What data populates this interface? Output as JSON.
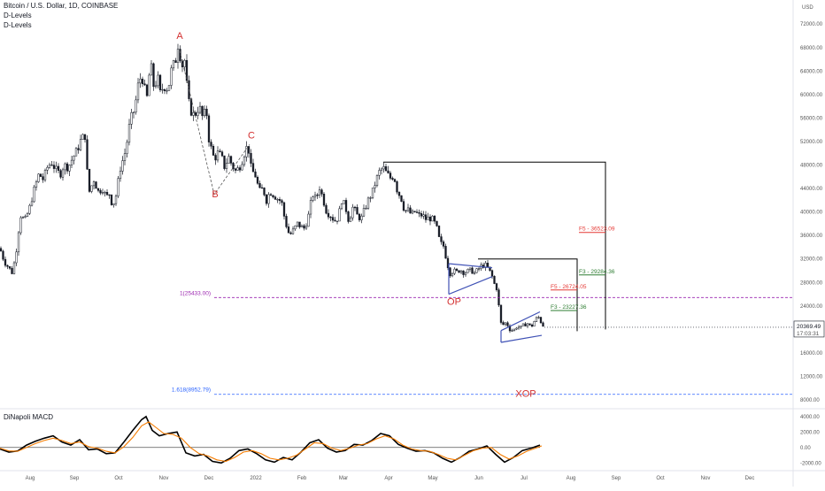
{
  "header": {
    "symbol_line": "Bitcoin / U.S. Dollar, 1D, COINBASE",
    "indicator_1": "D-Levels",
    "indicator_2": "D-Levels",
    "macd_label": "DiNapoli MACD"
  },
  "chart_data": [
    {
      "type": "candlestick",
      "currency_label": "USD",
      "y_ticks": [
        "72000.00",
        "68000.00",
        "64000.00",
        "60000.00",
        "56000.00",
        "52000.00",
        "48000.00",
        "44000.00",
        "40000.00",
        "36000.00",
        "32000.00",
        "28000.00",
        "24000.00",
        "20000.00",
        "16000.00",
        "12000.00",
        "8000.00"
      ],
      "ylim": [
        6500,
        75500
      ],
      "x_ticks": [
        "Aug",
        "Sep",
        "Oct",
        "Nov",
        "Dec",
        "2022",
        "Feb",
        "Mar",
        "Apr",
        "May",
        "Jun",
        "Jul",
        "Aug",
        "Sep",
        "Oct",
        "Nov",
        "Dec"
      ],
      "last_price": {
        "value": 20369.49,
        "label": "20369.49",
        "countdown": "17:03:31"
      },
      "price_path": [
        [
          0,
          33800
        ],
        [
          5,
          31500
        ],
        [
          10,
          30500
        ],
        [
          14,
          29600
        ],
        [
          18,
          33000
        ],
        [
          23,
          39500
        ],
        [
          28,
          38500
        ],
        [
          33,
          40500
        ],
        [
          38,
          43500
        ],
        [
          44,
          46500
        ],
        [
          49,
          45500
        ],
        [
          53,
          47500
        ],
        [
          58,
          48500
        ],
        [
          63,
          47200
        ],
        [
          68,
          46400
        ],
        [
          72,
          48000
        ],
        [
          77,
          47600
        ],
        [
          82,
          49200
        ],
        [
          87,
          50500
        ],
        [
          92,
          52500
        ],
        [
          96,
          53000
        ],
        [
          98,
          47500
        ],
        [
          101,
          43500
        ],
        [
          106,
          45500
        ],
        [
          111,
          43500
        ],
        [
          116,
          44000
        ],
        [
          120,
          42500
        ],
        [
          124,
          43200
        ],
        [
          127,
          41000
        ],
        [
          131,
          42800
        ],
        [
          136,
          47500
        ],
        [
          142,
          50500
        ],
        [
          147,
          55500
        ],
        [
          152,
          57500
        ],
        [
          156,
          61500
        ],
        [
          160,
          63500
        ],
        [
          163,
          61000
        ],
        [
          166,
          59500
        ],
        [
          170,
          65500
        ],
        [
          174,
          61000
        ],
        [
          178,
          63000
        ],
        [
          181,
          60200
        ],
        [
          185,
          61500
        ],
        [
          190,
          61000
        ],
        [
          194,
          64500
        ],
        [
          198,
          65500
        ],
        [
          201,
          68500
        ],
        [
          203,
          67000
        ],
        [
          206,
          65000
        ],
        [
          209,
          66000
        ],
        [
          212,
          59500
        ],
        [
          215,
          57500
        ],
        [
          218,
          56500
        ],
        [
          221,
          56800
        ],
        [
          225,
          58000
        ],
        [
          229,
          56000
        ],
        [
          233,
          57500
        ],
        [
          236,
          52500
        ],
        [
          239,
          50500
        ],
        [
          242,
          49000
        ],
        [
          246,
          50000
        ],
        [
          250,
          49500
        ],
        [
          254,
          47500
        ],
        [
          258,
          49500
        ],
        [
          262,
          48000
        ],
        [
          266,
          47000
        ],
        [
          270,
          47500
        ],
        [
          274,
          49000
        ],
        [
          278,
          51000
        ],
        [
          281,
          50500
        ],
        [
          284,
          47000
        ],
        [
          288,
          46500
        ],
        [
          293,
          43500
        ],
        [
          297,
          44000
        ],
        [
          301,
          42000
        ],
        [
          305,
          43500
        ],
        [
          310,
          42800
        ],
        [
          314,
          42200
        ],
        [
          318,
          41800
        ],
        [
          322,
          38500
        ],
        [
          327,
          36000
        ],
        [
          331,
          36800
        ],
        [
          336,
          38000
        ],
        [
          340,
          37500
        ],
        [
          344,
          37200
        ],
        [
          348,
          39000
        ],
        [
          353,
          43000
        ],
        [
          357,
          42200
        ],
        [
          361,
          44200
        ],
        [
          365,
          42200
        ],
        [
          369,
          40000
        ],
        [
          373,
          39500
        ],
        [
          378,
          38500
        ],
        [
          382,
          39000
        ],
        [
          386,
          42000
        ],
        [
          390,
          41000
        ],
        [
          394,
          38500
        ],
        [
          399,
          41000
        ],
        [
          403,
          39500
        ],
        [
          408,
          38800
        ],
        [
          412,
          40500
        ],
        [
          416,
          42000
        ],
        [
          421,
          43500
        ],
        [
          425,
          45500
        ],
        [
          429,
          47000
        ],
        [
          433,
          47500
        ],
        [
          437,
          46500
        ],
        [
          441,
          45800
        ],
        [
          445,
          46200
        ],
        [
          449,
          43500
        ],
        [
          453,
          42500
        ],
        [
          457,
          40200
        ],
        [
          461,
          40300
        ],
        [
          465,
          39500
        ],
        [
          469,
          40100
        ],
        [
          473,
          39400
        ],
        [
          477,
          39500
        ],
        [
          481,
          38800
        ],
        [
          485,
          39000
        ],
        [
          489,
          38700
        ],
        [
          493,
          37500
        ],
        [
          497,
          34800
        ],
        [
          501,
          34200
        ],
        [
          505,
          31500
        ],
        [
          508,
          29500
        ],
        [
          512,
          30000
        ],
        [
          516,
          29800
        ],
        [
          520,
          30200
        ],
        [
          524,
          29700
        ],
        [
          528,
          29900
        ],
        [
          532,
          30100
        ],
        [
          536,
          29600
        ],
        [
          540,
          30200
        ],
        [
          544,
          30800
        ],
        [
          548,
          31000
        ],
        [
          552,
          30300
        ],
        [
          556,
          29000
        ],
        [
          559,
          27500
        ],
        [
          562,
          26800
        ],
        [
          565,
          21200
        ],
        [
          568,
          20800
        ],
        [
          572,
          21200
        ],
        [
          576,
          20000
        ],
        [
          580,
          19800
        ],
        [
          584,
          20500
        ],
        [
          588,
          20300
        ],
        [
          592,
          20800
        ],
        [
          596,
          21000
        ],
        [
          600,
          20400
        ],
        [
          604,
          21500
        ],
        [
          608,
          22200
        ],
        [
          612,
          21000
        ],
        [
          615,
          20369
        ]
      ],
      "fib_levels": [
        {
          "label": "1(25433.00)",
          "value": 25433,
          "color": "#9c27b0"
        },
        {
          "label": "1.618(8952.79)",
          "value": 8952.79,
          "color": "#2962ff"
        }
      ],
      "projection_boxes": [
        {
          "top": 48500,
          "bottom": 20000,
          "f5": "F5 - 36523.09",
          "f5_value": 36523.09,
          "f3": "F3 - 29284.36",
          "f3_value": 29284.36
        },
        {
          "top": 32000,
          "bottom": 19700,
          "f5": "F5 - 26724.05",
          "f5_value": 26724.05,
          "f3": "F3 - 23227.36",
          "f3_value": 23227.36
        }
      ],
      "wave_labels": [
        {
          "text": "A",
          "price": 69500
        },
        {
          "text": "B",
          "price": 42500
        },
        {
          "text": "C",
          "price": 52500
        },
        {
          "text": "OP",
          "price": 24200
        },
        {
          "text": "XOP",
          "price": 8500
        }
      ],
      "trend_channels": [
        {
          "upper": [
            [
              507,
              31200
            ],
            [
              556,
              30500
            ]
          ],
          "lower": [
            [
              507,
              26000
            ],
            [
              556,
              29000
            ]
          ]
        },
        {
          "upper": [
            [
              566,
              19800
            ],
            [
              610,
              23000
            ]
          ],
          "lower": [
            [
              566,
              17800
            ],
            [
              612,
              19000
            ]
          ]
        }
      ],
      "colors": {
        "candle": "#131722",
        "box": "#000000",
        "channel": "#3f51b5",
        "f5": "#e53935",
        "f3": "#2e7d32",
        "wave": "#d32f2f"
      }
    },
    {
      "type": "line",
      "title": "DiNapoli MACD",
      "y_ticks": [
        "4000.00",
        "2000.00",
        "0.00",
        "-2000.00"
      ],
      "ylim": [
        -3000,
        5000
      ],
      "series": [
        {
          "color": "#000000",
          "path": [
            [
              0,
              -200
            ],
            [
              10,
              -600
            ],
            [
              20,
              -450
            ],
            [
              30,
              300
            ],
            [
              40,
              800
            ],
            [
              50,
              1200
            ],
            [
              60,
              1500
            ],
            [
              70,
              700
            ],
            [
              80,
              300
            ],
            [
              90,
              1000
            ],
            [
              100,
              -300
            ],
            [
              110,
              -200
            ],
            [
              120,
              -800
            ],
            [
              130,
              -700
            ],
            [
              140,
              700
            ],
            [
              150,
              2200
            ],
            [
              160,
              3600
            ],
            [
              165,
              4000
            ],
            [
              172,
              2200
            ],
            [
              180,
              1500
            ],
            [
              190,
              1800
            ],
            [
              200,
              2000
            ],
            [
              210,
              -700
            ],
            [
              220,
              -1100
            ],
            [
              230,
              -900
            ],
            [
              240,
              -1800
            ],
            [
              250,
              -2000
            ],
            [
              260,
              -1400
            ],
            [
              270,
              -400
            ],
            [
              280,
              -200
            ],
            [
              290,
              -800
            ],
            [
              300,
              -1600
            ],
            [
              310,
              -1900
            ],
            [
              320,
              -1300
            ],
            [
              330,
              -1600
            ],
            [
              340,
              -600
            ],
            [
              350,
              600
            ],
            [
              360,
              1000
            ],
            [
              370,
              -100
            ],
            [
              380,
              -600
            ],
            [
              390,
              -400
            ],
            [
              400,
              400
            ],
            [
              410,
              300
            ],
            [
              420,
              900
            ],
            [
              430,
              1800
            ],
            [
              440,
              1500
            ],
            [
              450,
              400
            ],
            [
              460,
              -100
            ],
            [
              470,
              -500
            ],
            [
              480,
              -400
            ],
            [
              490,
              -700
            ],
            [
              500,
              -1400
            ],
            [
              510,
              -1900
            ],
            [
              520,
              -1300
            ],
            [
              530,
              -500
            ],
            [
              540,
              -200
            ],
            [
              550,
              200
            ],
            [
              560,
              -900
            ],
            [
              570,
              -1900
            ],
            [
              580,
              -1300
            ],
            [
              590,
              -400
            ],
            [
              600,
              -100
            ],
            [
              610,
              300
            ]
          ]
        },
        {
          "color": "#f57c00",
          "path": [
            [
              0,
              -100
            ],
            [
              10,
              -450
            ],
            [
              20,
              -500
            ],
            [
              30,
              0
            ],
            [
              40,
              500
            ],
            [
              50,
              900
            ],
            [
              60,
              1200
            ],
            [
              70,
              900
            ],
            [
              80,
              500
            ],
            [
              90,
              700
            ],
            [
              100,
              100
            ],
            [
              110,
              -100
            ],
            [
              120,
              -500
            ],
            [
              130,
              -700
            ],
            [
              140,
              100
            ],
            [
              150,
              1300
            ],
            [
              160,
              2800
            ],
            [
              168,
              3300
            ],
            [
              176,
              2600
            ],
            [
              185,
              1800
            ],
            [
              195,
              1700
            ],
            [
              205,
              1200
            ],
            [
              215,
              0
            ],
            [
              225,
              -800
            ],
            [
              235,
              -1100
            ],
            [
              245,
              -1600
            ],
            [
              255,
              -1800
            ],
            [
              265,
              -1300
            ],
            [
              275,
              -600
            ],
            [
              285,
              -400
            ],
            [
              295,
              -800
            ],
            [
              305,
              -1400
            ],
            [
              315,
              -1600
            ],
            [
              325,
              -1400
            ],
            [
              335,
              -1000
            ],
            [
              345,
              -200
            ],
            [
              355,
              600
            ],
            [
              365,
              500
            ],
            [
              375,
              -100
            ],
            [
              385,
              -400
            ],
            [
              395,
              -100
            ],
            [
              405,
              300
            ],
            [
              415,
              500
            ],
            [
              425,
              1100
            ],
            [
              435,
              1500
            ],
            [
              445,
              1100
            ],
            [
              455,
              300
            ],
            [
              465,
              -200
            ],
            [
              475,
              -400
            ],
            [
              485,
              -500
            ],
            [
              495,
              -900
            ],
            [
              505,
              -1400
            ],
            [
              515,
              -1600
            ],
            [
              525,
              -1000
            ],
            [
              535,
              -400
            ],
            [
              545,
              -100
            ],
            [
              555,
              0
            ],
            [
              565,
              -900
            ],
            [
              575,
              -1500
            ],
            [
              585,
              -1100
            ],
            [
              595,
              -500
            ],
            [
              605,
              -100
            ],
            [
              612,
              200
            ]
          ]
        }
      ],
      "zero_line_end": 610
    }
  ]
}
